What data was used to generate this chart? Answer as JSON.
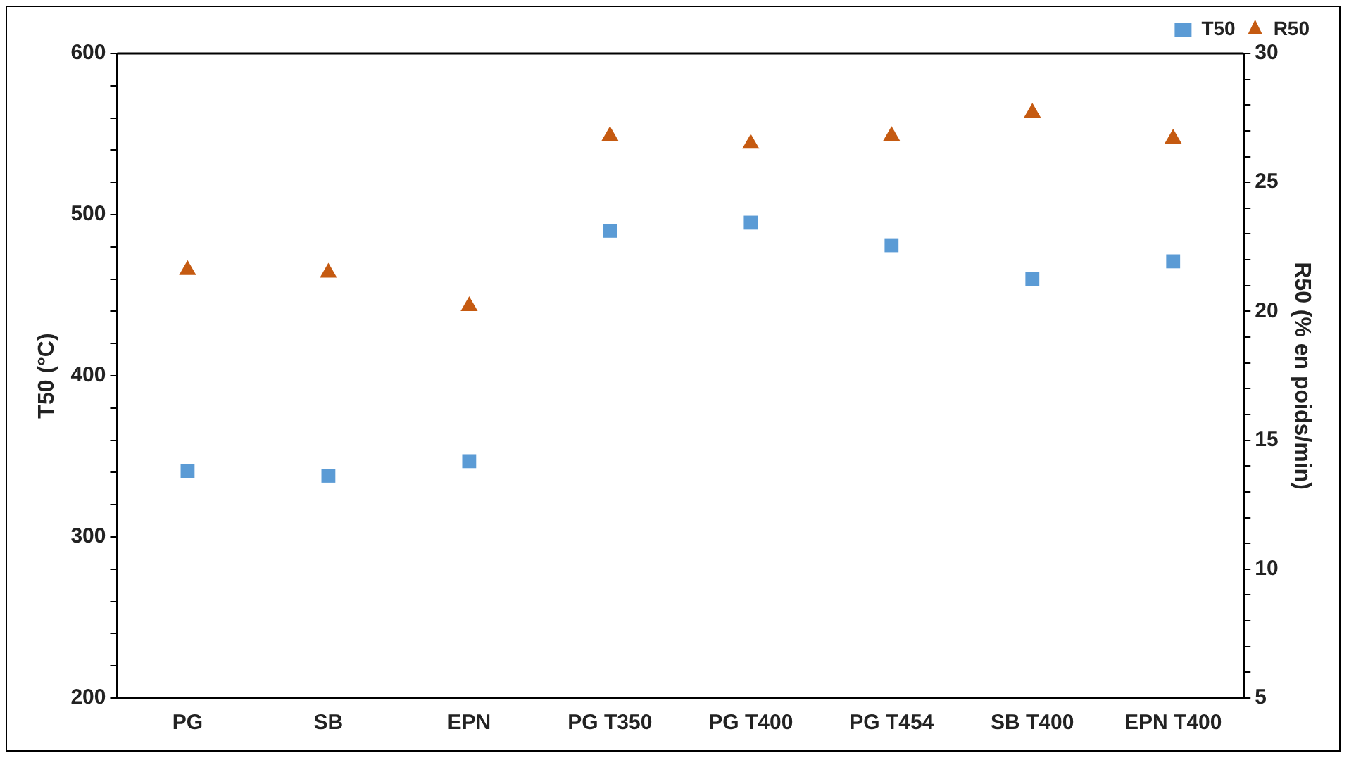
{
  "chart_data": {
    "type": "scatter",
    "xlabel": null,
    "ylabel": "T50 (°C)",
    "y2label": "R50 (% en poids/min)",
    "categories": [
      "PG",
      "SB",
      "EPN",
      "PG T350",
      "PG T400",
      "PG T454",
      "SB T400",
      "EPN T400"
    ],
    "series": [
      {
        "name": "T50",
        "color": "#5b9bd5",
        "marker": "square",
        "values": [
          341,
          338,
          347,
          490,
          495,
          481,
          460,
          471
        ]
      },
      {
        "name": "R50",
        "color": "#c55a11",
        "marker": "triangle",
        "axis": "y2",
        "values": [
          21.6,
          21.5,
          20.2,
          26.8,
          26.5,
          26.8,
          27.7,
          26.7
        ]
      }
    ],
    "ylim": [
      200,
      600
    ],
    "yticks": [
      200,
      {
        "value": 220,
        "label": null
      },
      {
        "value": 240,
        "label": null
      },
      {
        "value": 260,
        "label": null
      },
      {
        "value": 280,
        "label": null
      },
      300,
      {
        "value": 320,
        "label": null
      },
      {
        "value": 340,
        "label": null
      },
      {
        "value": 360,
        "label": null
      },
      {
        "value": 380,
        "label": null
      },
      400,
      {
        "value": 420,
        "label": null
      },
      {
        "value": 440,
        "label": null
      },
      {
        "value": 460,
        "label": null
      },
      {
        "value": 480,
        "label": null
      },
      500,
      {
        "value": 520,
        "label": null
      },
      {
        "value": 540,
        "label": null
      },
      {
        "value": 560,
        "label": null
      },
      {
        "value": 580,
        "label": null
      },
      600
    ],
    "y2lim": [
      5,
      30
    ],
    "y2ticks": [
      5,
      {
        "value": 6,
        "label": null
      },
      {
        "value": 7,
        "label": null
      },
      {
        "value": 8,
        "label": null
      },
      {
        "value": 9,
        "label": null
      },
      10,
      {
        "value": 11,
        "label": null
      },
      {
        "value": 12,
        "label": null
      },
      {
        "value": 13,
        "label": null
      },
      {
        "value": 14,
        "label": null
      },
      15,
      {
        "value": 16,
        "label": null
      },
      {
        "value": 17,
        "label": null
      },
      {
        "value": 18,
        "label": null
      },
      {
        "value": 19,
        "label": null
      },
      20,
      {
        "value": 21,
        "label": null
      },
      {
        "value": 22,
        "label": null
      },
      {
        "value": 23,
        "label": null
      },
      {
        "value": 24,
        "label": null
      },
      25,
      {
        "value": 26,
        "label": null
      },
      {
        "value": 27,
        "label": null
      },
      {
        "value": 28,
        "label": null
      },
      {
        "value": 29,
        "label": null
      },
      30
    ],
    "grid": false,
    "legend": "top right"
  }
}
